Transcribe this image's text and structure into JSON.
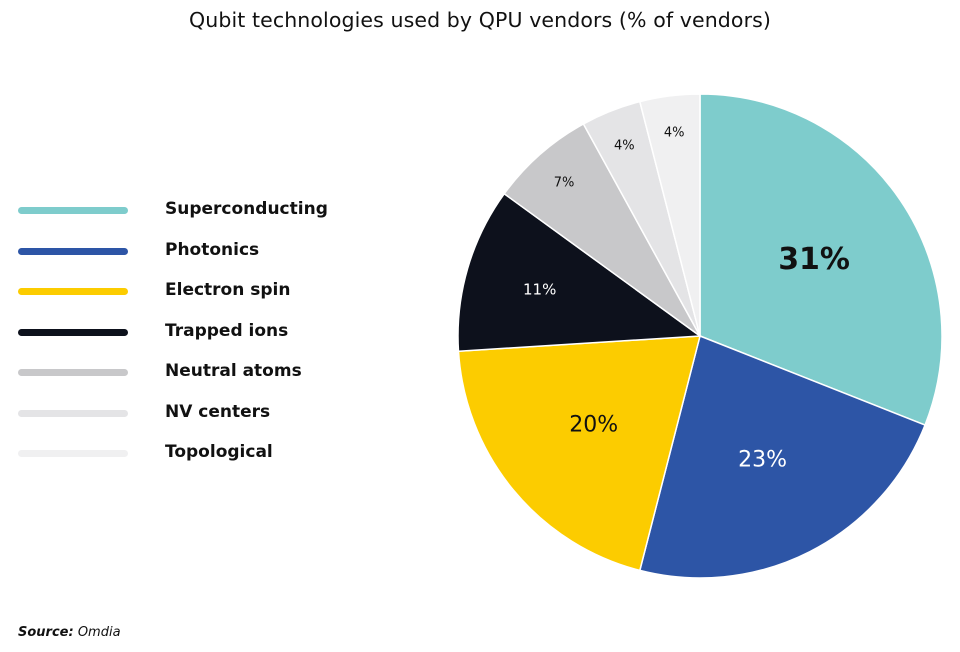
{
  "chart_data": {
    "type": "pie",
    "title": "Qubit technologies used by QPU vendors (% of vendors)",
    "slices": [
      {
        "label": "Superconducting",
        "value": 31,
        "display": "31%",
        "color": "#7ecccc",
        "text_color": "#111111"
      },
      {
        "label": "Photonics",
        "value": 23,
        "display": "23%",
        "color": "#2d55a6",
        "text_color": "#ffffff"
      },
      {
        "label": "Electron spin",
        "value": 20,
        "display": "20%",
        "color": "#fccc00",
        "text_color": "#111111"
      },
      {
        "label": "Trapped ions",
        "value": 11,
        "display": "11%",
        "color": "#0d111c",
        "text_color": "#ffffff"
      },
      {
        "label": "Neutral atoms",
        "value": 7,
        "display": "7%",
        "color": "#c8c8ca",
        "text_color": "#111111"
      },
      {
        "label": "NV centers",
        "value": 4,
        "display": "4%",
        "color": "#e4e4e6",
        "text_color": "#111111"
      },
      {
        "label": "Topological",
        "value": 4,
        "display": "4%",
        "color": "#f0f0f1",
        "text_color": "#111111"
      }
    ],
    "legend_position": "left"
  },
  "source": {
    "key": "Source:",
    "value": "Omdia"
  }
}
